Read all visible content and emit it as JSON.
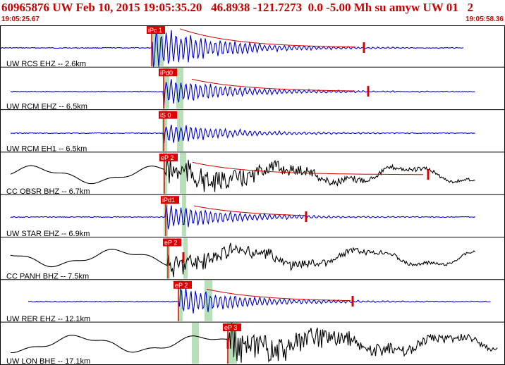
{
  "header": {
    "title": "60965876 UW Feb 10, 2015 19:05:35.20   46.8938 -121.7273  0.0 -5.00 Mh su amyw UW 01   2",
    "start_time": "19:05:25.67",
    "end_time": "19:05:58.36"
  },
  "colors": {
    "text_red": "#cc0000",
    "trace_blue": "#0000cc",
    "trace_black": "#000000",
    "pick_red": "#dd0000",
    "window_green": "#b8e0b8",
    "coda_fit": "#cc0000"
  },
  "traces": [
    {
      "label": "UW RCS EHZ -- 2.6km",
      "pick": "iPc 1",
      "color": "blue"
    },
    {
      "label": "UW RCM EHZ -- 6.5km",
      "pick": "iPd0",
      "color": "blue"
    },
    {
      "label": "UW RCM EH1 -- 6.5km",
      "pick": "iS 0",
      "color": "blue"
    },
    {
      "label": "CC OBSR BHZ -- 6.7km",
      "pick": "eP 2",
      "color": "black"
    },
    {
      "label": "UW STAR EHZ -- 6.9km",
      "pick": "iPd1",
      "color": "blue"
    },
    {
      "label": "CC PANH BHZ -- 7.5km",
      "pick": "eP 2",
      "color": "black"
    },
    {
      "label": "UW RER EHZ -- 12.1km",
      "pick": "eP 2",
      "color": "blue"
    },
    {
      "label": "UW LON BHE -- 17.1km",
      "pick": "eP 3",
      "color": "black"
    }
  ]
}
